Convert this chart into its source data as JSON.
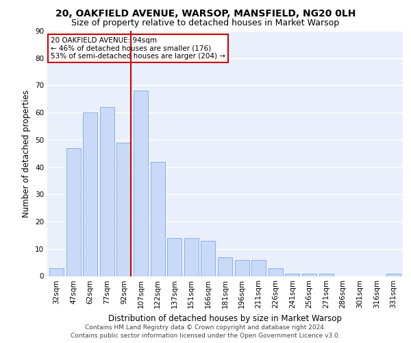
{
  "title": "20, OAKFIELD AVENUE, WARSOP, MANSFIELD, NG20 0LH",
  "subtitle": "Size of property relative to detached houses in Market Warsop",
  "xlabel": "Distribution of detached houses by size in Market Warsop",
  "ylabel": "Number of detached properties",
  "categories": [
    "32sqm",
    "47sqm",
    "62sqm",
    "77sqm",
    "92sqm",
    "107sqm",
    "122sqm",
    "137sqm",
    "151sqm",
    "166sqm",
    "181sqm",
    "196sqm",
    "211sqm",
    "226sqm",
    "241sqm",
    "256sqm",
    "271sqm",
    "286sqm",
    "301sqm",
    "316sqm",
    "331sqm"
  ],
  "values": [
    3,
    47,
    60,
    62,
    49,
    68,
    42,
    14,
    14,
    13,
    7,
    6,
    6,
    3,
    1,
    1,
    1,
    0,
    0,
    0,
    1
  ],
  "bar_color": "#c9daf8",
  "bar_edge_color": "#8ab0e8",
  "bg_color": "#ffffff",
  "plot_bg_color": "#eaf0fb",
  "grid_color": "#ffffff",
  "property_label": "20 OAKFIELD AVENUE: 94sqm",
  "annotation_line1": "← 46% of detached houses are smaller (176)",
  "annotation_line2": "53% of semi-detached houses are larger (204) →",
  "annotation_box_color": "#ffffff",
  "annotation_box_edge": "#cc0000",
  "property_line_color": "#cc0000",
  "ylim": [
    0,
    90
  ],
  "yticks": [
    0,
    10,
    20,
    30,
    40,
    50,
    60,
    70,
    80,
    90
  ],
  "footer_line1": "Contains HM Land Registry data © Crown copyright and database right 2024.",
  "footer_line2": "Contains public sector information licensed under the Open Government Licence v3.0.",
  "title_fontsize": 10,
  "subtitle_fontsize": 9,
  "xlabel_fontsize": 8.5,
  "ylabel_fontsize": 8.5,
  "tick_fontsize": 7.5,
  "footer_fontsize": 6.5,
  "annot_fontsize": 7.5
}
